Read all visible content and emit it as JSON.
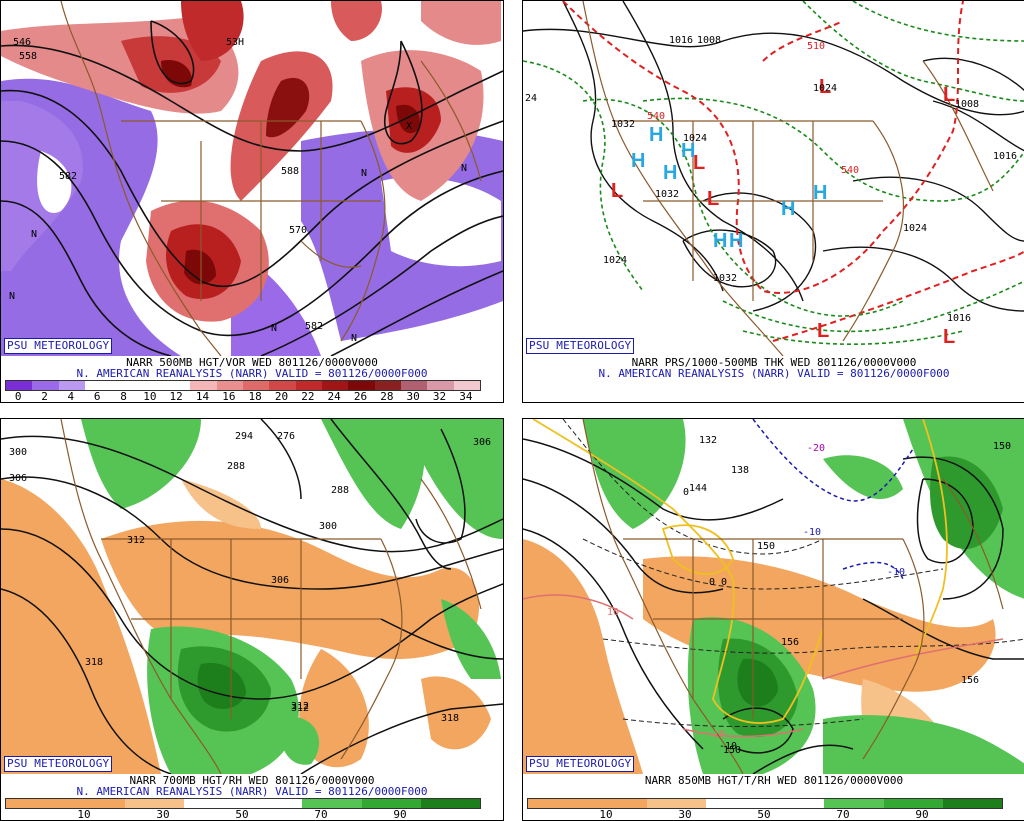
{
  "panels": [
    {
      "id": "vor500",
      "badge": "PSU METEOROLOGY",
      "line1": "NARR 500MB HGT/VOR WED 801126/0000V000",
      "line2": "N. AMERICAN REANALYSIS (NARR) VALID = 801126/0000F000",
      "colorbar_colors": [
        "#7a2fd6",
        "#9a6ae8",
        "#b99af0",
        "#ffffff",
        "#ffffff",
        "#ffffff",
        "#ffffff",
        "#f4b6b6",
        "#ea8f8f",
        "#de6a6a",
        "#d24747",
        "#c02a2a",
        "#a01616",
        "#7d0808",
        "#8a2020",
        "#b06070",
        "#d89aa8",
        "#f3c9d0"
      ],
      "colorbar_ticks": [
        "0",
        "2",
        "4",
        "6",
        "8",
        "10",
        "12",
        "14",
        "16",
        "18",
        "20",
        "22",
        "24",
        "26",
        "28",
        "30",
        "32",
        "34"
      ],
      "contour_labels": [
        "546",
        "558",
        "53H",
        "582",
        "588",
        "570",
        "582",
        "N",
        "N",
        "N",
        "N",
        "N",
        "N",
        "X"
      ]
    },
    {
      "id": "prs",
      "badge": "PSU METEOROLOGY",
      "line1": "NARR PRS/1000-500MB THK WED 801126/0000V000",
      "line2": "N. AMERICAN REANALYSIS (NARR) VALID = 801126/0000F000",
      "highs": [
        "H",
        "H",
        "H",
        "H",
        "H",
        "H",
        "H",
        "H"
      ],
      "lows": [
        "L",
        "L",
        "L",
        "L",
        "L",
        "L",
        "L"
      ],
      "isobar_labels": [
        "1016",
        "1008",
        "1032",
        "1024",
        "1032",
        "1024",
        "1032",
        "1024",
        "1016",
        "1016",
        "1008",
        "1024",
        "540",
        "540",
        "510",
        "24"
      ]
    },
    {
      "id": "rh700",
      "badge": "PSU METEOROLOGY",
      "line1": "NARR 700MB HGT/RH WED 801126/0000V000",
      "line2": "N. AMERICAN REANALYSIS (NARR) VALID = 801126/0000F000",
      "colorbar_colors": [
        "#f2a65f",
        "#f2a65f",
        "#f7c18a",
        "#ffffff",
        "#ffffff",
        "#55c455",
        "#33a833",
        "#1c7f1c"
      ],
      "colorbar_ticks": [
        "10",
        "30",
        "50",
        "70",
        "90"
      ],
      "contour_labels": [
        "300",
        "306",
        "312",
        "294",
        "288",
        "276",
        "300",
        "306",
        "312",
        "318",
        "312",
        "318",
        "306",
        "288"
      ]
    },
    {
      "id": "t850",
      "badge": "PSU METEOROLOGY",
      "line1": "NARR 850MB HGT/T/RH WED 801126/0000V000",
      "line2": "",
      "colorbar_colors": [
        "#f2a65f",
        "#f2a65f",
        "#f7c18a",
        "#ffffff",
        "#ffffff",
        "#55c455",
        "#33a833",
        "#1c7f1c"
      ],
      "colorbar_ticks": [
        "10",
        "30",
        "50",
        "70",
        "90"
      ],
      "contour_labels": [
        "138",
        "144",
        "150",
        "156",
        "156",
        "150",
        "132",
        "150",
        "-20",
        "-10",
        "-10",
        "10",
        "10",
        "-10",
        "0",
        "0",
        "0"
      ]
    }
  ]
}
